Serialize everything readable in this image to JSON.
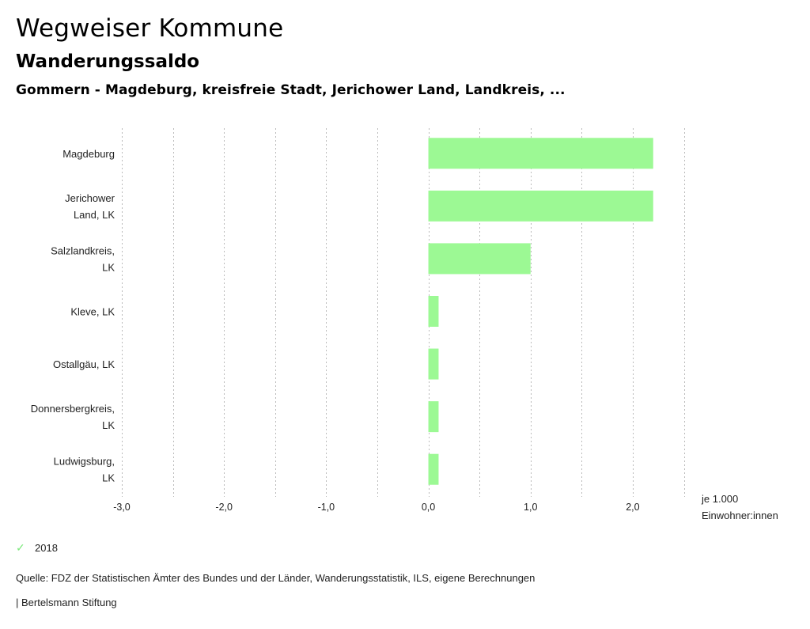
{
  "header": {
    "title": "Wegweiser Kommune",
    "subtitle": "Wanderungssaldo",
    "subsubtitle": "Gommern - Magdeburg, kreisfreie Stadt, Jerichower Land, Landkreis, ..."
  },
  "chart_data": {
    "type": "bar",
    "orientation": "horizontal",
    "title": "Wanderungssaldo",
    "categories": [
      [
        "Magdeburg"
      ],
      [
        "Jerichower",
        "Land, LK"
      ],
      [
        "Salzlandkreis,",
        "LK"
      ],
      [
        "Kleve, LK"
      ],
      [
        "Ostallgäu, LK"
      ],
      [
        "Donnersbergkreis,",
        "LK"
      ],
      [
        "Ludwigsburg,",
        "LK"
      ]
    ],
    "series": [
      {
        "name": "2018",
        "color": "#9cf994",
        "values": [
          2.2,
          2.2,
          1.0,
          0.1,
          0.1,
          0.1,
          0.1
        ]
      }
    ],
    "xlim": [
      -3.0,
      2.5
    ],
    "x_ticks": [
      -3.0,
      -2.0,
      -1.0,
      0.0,
      1.0,
      2.0
    ],
    "x_tick_labels": [
      "-3,0",
      "-2,0",
      "-1,0",
      "0,0",
      "1,0",
      "2,0"
    ],
    "gridline_step": 0.5,
    "grid": true,
    "xlabel": [
      "je 1.000",
      "Einwohner:innen"
    ],
    "legend_position": "bottom-left"
  },
  "legend": {
    "items": [
      {
        "label": "2018",
        "color": "#9cf994",
        "icon": "check-icon"
      }
    ]
  },
  "footer": {
    "source": "Quelle: FDZ der Statistischen Ämter des Bundes und der Länder, Wanderungsstatistik, ILS, eigene Berechnungen",
    "credit": "| Bertelsmann Stiftung"
  },
  "colors": {
    "bar": "#9cf994",
    "grid": "#bbbbbb",
    "legend_check": "#7de87d"
  }
}
